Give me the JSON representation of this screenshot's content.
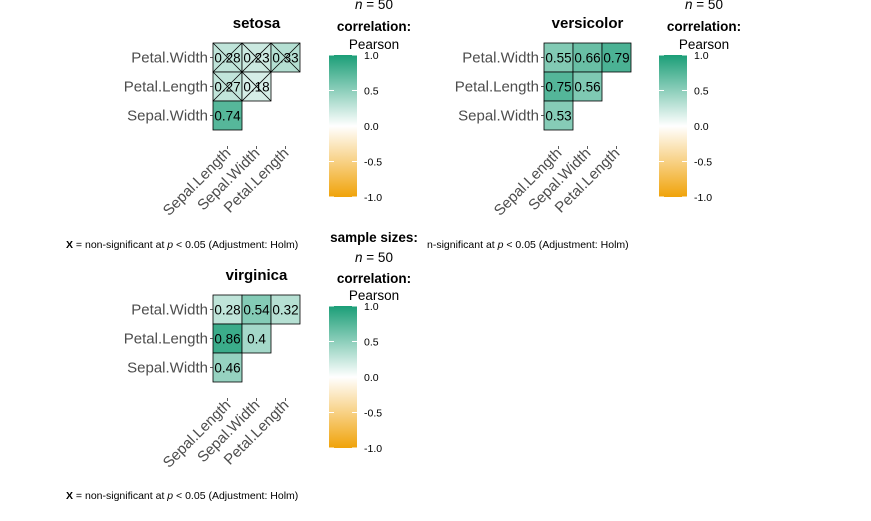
{
  "chart_data": [
    {
      "type": "heatmap",
      "title": "setosa",
      "variables": [
        "Sepal.Length",
        "Sepal.Width",
        "Petal.Length",
        "Petal.Width"
      ],
      "rows": [
        "Petal.Width",
        "Petal.Length",
        "Sepal.Width"
      ],
      "columns": [
        "Sepal.Length",
        "Sepal.Width",
        "Petal.Length"
      ],
      "cells": [
        {
          "row": "Petal.Width",
          "col": "Sepal.Length",
          "value": 0.28,
          "label": "0.28",
          "significant": false
        },
        {
          "row": "Petal.Width",
          "col": "Sepal.Width",
          "value": 0.23,
          "label": "0.23",
          "significant": false
        },
        {
          "row": "Petal.Width",
          "col": "Petal.Length",
          "value": 0.33,
          "label": "0.33",
          "significant": false
        },
        {
          "row": "Petal.Length",
          "col": "Sepal.Length",
          "value": 0.27,
          "label": "0.27",
          "significant": false
        },
        {
          "row": "Petal.Length",
          "col": "Sepal.Width",
          "value": 0.18,
          "label": "0.18",
          "significant": false
        },
        {
          "row": "Sepal.Width",
          "col": "Sepal.Length",
          "value": 0.74,
          "label": "0.74",
          "significant": true
        }
      ],
      "legend": {
        "header_lines": [
          "n = 50",
          "correlation:",
          "Pearson"
        ],
        "ticks": [
          "1.0",
          "0.5",
          "0.0",
          "-0.5",
          "-1.0"
        ],
        "range": [
          -1,
          1
        ],
        "colors": {
          "high": "#1b9e77",
          "mid": "#ffffff",
          "low": "#f0a30a"
        }
      },
      "caption": {
        "x": "X",
        "text1": " = non-significant at ",
        "p": "p",
        "text2": " < 0.05 (Adjustment: Holm)"
      }
    },
    {
      "type": "heatmap",
      "title": "versicolor",
      "variables": [
        "Sepal.Length",
        "Sepal.Width",
        "Petal.Length",
        "Petal.Width"
      ],
      "rows": [
        "Petal.Width",
        "Petal.Length",
        "Sepal.Width"
      ],
      "columns": [
        "Sepal.Length",
        "Sepal.Width",
        "Petal.Length"
      ],
      "cells": [
        {
          "row": "Petal.Width",
          "col": "Sepal.Length",
          "value": 0.55,
          "label": "0.55",
          "significant": true
        },
        {
          "row": "Petal.Width",
          "col": "Sepal.Width",
          "value": 0.66,
          "label": "0.66",
          "significant": true
        },
        {
          "row": "Petal.Width",
          "col": "Petal.Length",
          "value": 0.79,
          "label": "0.79",
          "significant": true
        },
        {
          "row": "Petal.Length",
          "col": "Sepal.Length",
          "value": 0.75,
          "label": "0.75",
          "significant": true
        },
        {
          "row": "Petal.Length",
          "col": "Sepal.Width",
          "value": 0.56,
          "label": "0.56",
          "significant": true
        },
        {
          "row": "Sepal.Width",
          "col": "Sepal.Length",
          "value": 0.53,
          "label": "0.53",
          "significant": true
        }
      ],
      "legend": {
        "header_lines": [
          "n = 50",
          "correlation:",
          "Pearson"
        ],
        "ticks": [
          "1.0",
          "0.5",
          "0.0",
          "-0.5",
          "-1.0"
        ],
        "range": [
          -1,
          1
        ],
        "colors": {
          "high": "#1b9e77",
          "mid": "#ffffff",
          "low": "#f0a30a"
        }
      },
      "caption": {
        "x": "",
        "text1": "n-significant at ",
        "p": "p",
        "text2": " < 0.05 (Adjustment: Holm)"
      }
    },
    {
      "type": "heatmap",
      "title": "virginica",
      "variables": [
        "Sepal.Length",
        "Sepal.Width",
        "Petal.Length",
        "Petal.Width"
      ],
      "rows": [
        "Petal.Width",
        "Petal.Length",
        "Sepal.Width"
      ],
      "columns": [
        "Sepal.Length",
        "Sepal.Width",
        "Petal.Length"
      ],
      "cells": [
        {
          "row": "Petal.Width",
          "col": "Sepal.Length",
          "value": 0.28,
          "label": "0.28",
          "significant": true
        },
        {
          "row": "Petal.Width",
          "col": "Sepal.Width",
          "value": 0.54,
          "label": "0.54",
          "significant": true
        },
        {
          "row": "Petal.Width",
          "col": "Petal.Length",
          "value": 0.32,
          "label": "0.32",
          "significant": true
        },
        {
          "row": "Petal.Length",
          "col": "Sepal.Length",
          "value": 0.86,
          "label": "0.86",
          "significant": true
        },
        {
          "row": "Petal.Length",
          "col": "Sepal.Width",
          "value": 0.4,
          "label": "0.4",
          "significant": true
        },
        {
          "row": "Sepal.Width",
          "col": "Sepal.Length",
          "value": 0.46,
          "label": "0.46",
          "significant": true
        }
      ],
      "legend": {
        "header_lines": [
          "sample sizes:",
          "n = 50",
          "correlation:",
          "Pearson"
        ],
        "ticks": [
          "1.0",
          "0.5",
          "0.0",
          "-0.5",
          "-1.0"
        ],
        "range": [
          -1,
          1
        ],
        "colors": {
          "high": "#1b9e77",
          "mid": "#ffffff",
          "low": "#f0a30a"
        }
      },
      "caption": {
        "x": "X",
        "text1": " = non-significant at ",
        "p": "p",
        "text2": " < 0.05 (Adjustment: Holm)"
      }
    }
  ]
}
